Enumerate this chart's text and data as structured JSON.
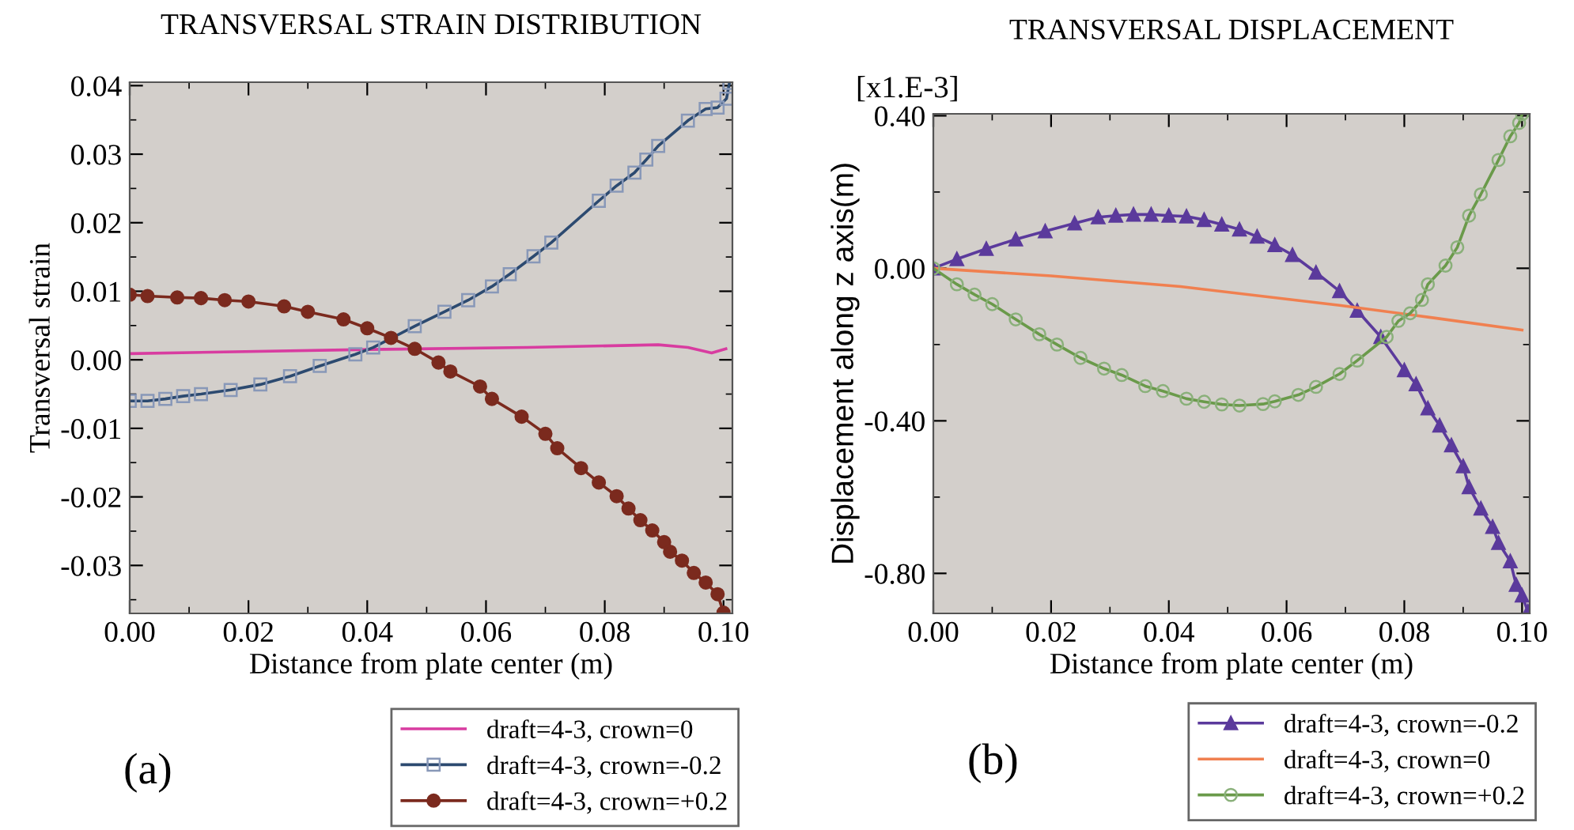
{
  "chart_data": [
    {
      "type": "line",
      "title": "TRANSVERSAL STRAIN DISTRIBUTION",
      "xlabel": "Distance from plate center (m)",
      "ylabel": "Transversal strain",
      "xlim": [
        0,
        0.1015
      ],
      "ylim": [
        -0.037,
        0.0405
      ],
      "xticks": [
        {
          "value": 0,
          "label": "0.00"
        },
        {
          "value": 0.02,
          "label": "0.02"
        },
        {
          "value": 0.04,
          "label": "0.04"
        },
        {
          "value": 0.06,
          "label": "0.06"
        },
        {
          "value": 0.08,
          "label": "0.08"
        },
        {
          "value": 0.1,
          "label": "0.10"
        }
      ],
      "yticks": [
        {
          "value": -0.03,
          "label": "-0.03"
        },
        {
          "value": -0.02,
          "label": "-0.02"
        },
        {
          "value": -0.01,
          "label": "-0.01"
        },
        {
          "value": 0,
          "label": "0.00"
        },
        {
          "value": 0.01,
          "label": "0.01"
        },
        {
          "value": 0.02,
          "label": "0.02"
        },
        {
          "value": 0.03,
          "label": "0.03"
        },
        {
          "value": 0.04,
          "label": "0.04"
        }
      ],
      "grid": false,
      "legend": "bottom right",
      "annotations": [
        "(a)"
      ],
      "series": [
        {
          "name": "draft=4-3, crown=0",
          "color": "#d83ca0",
          "marker": "none",
          "x": [
            0,
            0.04,
            0.067,
            0.089,
            0.094,
            0.098,
            0.1004
          ],
          "values": [
            0.0009,
            0.0015,
            0.0018,
            0.0022,
            0.0018,
            0.001,
            0.0016
          ]
        },
        {
          "name": "draft=4-3, crown=-0.2",
          "color": "#2c4a70",
          "marker": "square",
          "x": [
            0,
            0.003,
            0.006,
            0.009,
            0.012,
            0.017,
            0.022,
            0.027,
            0.032,
            0.038,
            0.041,
            0.048,
            0.053,
            0.057,
            0.061,
            0.064,
            0.068,
            0.071,
            0.079,
            0.082,
            0.085,
            0.087,
            0.089,
            0.094,
            0.097,
            0.099,
            0.1005,
            0.101
          ],
          "values": [
            -0.006,
            -0.006,
            -0.0057,
            -0.0053,
            -0.005,
            -0.0044,
            -0.0036,
            -0.0024,
            -0.0009,
            0.0008,
            0.0018,
            0.0049,
            0.007,
            0.0087,
            0.0107,
            0.0125,
            0.0151,
            0.0171,
            0.0232,
            0.0254,
            0.0273,
            0.0292,
            0.0312,
            0.0349,
            0.0366,
            0.0368,
            0.0381,
            0.0404
          ]
        },
        {
          "name": "draft=4-3, crown=+0.2",
          "color": "#7b2a1e",
          "marker": "circle",
          "x": [
            0,
            0.003,
            0.008,
            0.012,
            0.016,
            0.02,
            0.026,
            0.03,
            0.036,
            0.04,
            0.044,
            0.048,
            0.052,
            0.054,
            0.059,
            0.061,
            0.066,
            0.07,
            0.072,
            0.076,
            0.079,
            0.082,
            0.084,
            0.086,
            0.088,
            0.09,
            0.091,
            0.093,
            0.095,
            0.097,
            0.099,
            0.1
          ],
          "values": [
            0.0095,
            0.0093,
            0.0091,
            0.009,
            0.0087,
            0.0085,
            0.0078,
            0.007,
            0.0059,
            0.0046,
            0.0032,
            0.0016,
            -0.0004,
            -0.0017,
            -0.0039,
            -0.0057,
            -0.0083,
            -0.0108,
            -0.0129,
            -0.0158,
            -0.0179,
            -0.0199,
            -0.0217,
            -0.0234,
            -0.0249,
            -0.0266,
            -0.028,
            -0.0293,
            -0.0311,
            -0.0325,
            -0.0342,
            -0.0369
          ]
        }
      ]
    },
    {
      "type": "line",
      "title": "TRANSVERSAL DISPLACEMENT",
      "xlabel": "Distance from plate center (m)",
      "ylabel": "Displacement along z axis(m)",
      "xlim": [
        0,
        0.1013
      ],
      "ylim": [
        -0.905,
        0.405
      ],
      "xticks": [
        {
          "value": 0,
          "label": "0.00"
        },
        {
          "value": 0.02,
          "label": "0.02"
        },
        {
          "value": 0.04,
          "label": "0.04"
        },
        {
          "value": 0.06,
          "label": "0.06"
        },
        {
          "value": 0.08,
          "label": "0.08"
        },
        {
          "value": 0.1,
          "label": "0.10"
        }
      ],
      "yticks": [
        {
          "value": -0.8,
          "label": "-0.80"
        },
        {
          "value": -0.4,
          "label": "-0.40"
        },
        {
          "value": 0,
          "label": "0.00"
        },
        {
          "value": 0.4,
          "label": "0.40"
        }
      ],
      "grid": false,
      "legend": "bottom right",
      "annotations": [
        "[x1.E-3]",
        "(b)"
      ],
      "series": [
        {
          "name": "draft=4-3, crown=-0.2",
          "color": "#5b3a9c",
          "marker": "triangle",
          "x": [
            0,
            0.004,
            0.009,
            0.014,
            0.019,
            0.024,
            0.028,
            0.031,
            0.034,
            0.037,
            0.04,
            0.043,
            0.046,
            0.049,
            0.052,
            0.055,
            0.058,
            0.061,
            0.065,
            0.069,
            0.072,
            0.076,
            0.08,
            0.082,
            0.084,
            0.086,
            0.088,
            0.09,
            0.091,
            0.093,
            0.095,
            0.096,
            0.098,
            0.099,
            0.1,
            0.101
          ],
          "values": [
            0,
            0.024,
            0.051,
            0.076,
            0.097,
            0.118,
            0.134,
            0.138,
            0.141,
            0.141,
            0.138,
            0.136,
            0.127,
            0.115,
            0.102,
            0.083,
            0.061,
            0.035,
            -0.011,
            -0.06,
            -0.111,
            -0.18,
            -0.267,
            -0.304,
            -0.367,
            -0.412,
            -0.464,
            -0.519,
            -0.574,
            -0.63,
            -0.678,
            -0.72,
            -0.768,
            -0.83,
            -0.858,
            -0.9
          ]
        },
        {
          "name": "draft=4-3, crown=0",
          "color": "#f08050",
          "marker": "none",
          "x": [
            0,
            0.02,
            0.042,
            0.069,
            0.085,
            0.1
          ],
          "values": [
            0,
            -0.02,
            -0.048,
            -0.097,
            -0.13,
            -0.162
          ]
        },
        {
          "name": "draft=4-3, crown=+0.2",
          "color": "#6a9a4a",
          "marker": "circle",
          "x": [
            0,
            0.004,
            0.007,
            0.01,
            0.014,
            0.018,
            0.021,
            0.025,
            0.029,
            0.032,
            0.036,
            0.039,
            0.043,
            0.046,
            0.049,
            0.052,
            0.056,
            0.058,
            0.062,
            0.065,
            0.069,
            0.072,
            0.077,
            0.079,
            0.081,
            0.083,
            0.084,
            0.087,
            0.089,
            0.091,
            0.093,
            0.096,
            0.098,
            0.0995,
            0.1
          ],
          "values": [
            0,
            -0.042,
            -0.069,
            -0.094,
            -0.134,
            -0.173,
            -0.2,
            -0.235,
            -0.263,
            -0.28,
            -0.309,
            -0.322,
            -0.342,
            -0.35,
            -0.357,
            -0.36,
            -0.356,
            -0.349,
            -0.332,
            -0.311,
            -0.277,
            -0.242,
            -0.18,
            -0.138,
            -0.118,
            -0.083,
            -0.042,
            0.007,
            0.055,
            0.138,
            0.194,
            0.284,
            0.346,
            0.381,
            0.404
          ]
        }
      ]
    }
  ]
}
